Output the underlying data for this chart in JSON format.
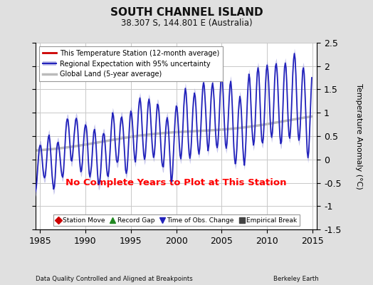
{
  "title": "SOUTH CHANNEL ISLAND",
  "subtitle": "38.307 S, 144.801 E (Australia)",
  "ylabel": "Temperature Anomaly (°C)",
  "xlabel_left": "Data Quality Controlled and Aligned at Breakpoints",
  "xlabel_right": "Berkeley Earth",
  "ylim": [
    -1.5,
    2.5
  ],
  "xlim": [
    1984.5,
    2015.5
  ],
  "xticks": [
    1985,
    1990,
    1995,
    2000,
    2005,
    2010,
    2015
  ],
  "yticks_left": [
    -1.5,
    -1.0,
    -0.5,
    0.0,
    0.5,
    1.0,
    1.5,
    2.0,
    2.5
  ],
  "yticks_right": [
    -1.5,
    -1.0,
    -0.5,
    0.0,
    0.5,
    1.0,
    1.5,
    2.0,
    2.5
  ],
  "ytick_labels_right": [
    "-1.5",
    "-1",
    "-0.5",
    "0",
    "0.5",
    "1",
    "1.5",
    "2",
    "2.5"
  ],
  "background_color": "#e0e0e0",
  "plot_bg_color": "#ffffff",
  "grid_color": "#c8c8c8",
  "no_data_text": "No Complete Years to Plot at This Station",
  "no_data_color": "#ff0000",
  "regional_color": "#2222bb",
  "regional_fill_color": "#9999dd",
  "global_land_color": "#bbbbbb",
  "station_color": "#cc0000",
  "legend1_items": [
    {
      "label": "This Temperature Station (12-month average)",
      "color": "#cc0000"
    },
    {
      "label": "Regional Expectation with 95% uncertainty",
      "color": "#2222bb"
    },
    {
      "label": "Global Land (5-year average)",
      "color": "#bbbbbb"
    }
  ],
  "legend2_items": [
    {
      "label": "Station Move",
      "color": "#cc0000",
      "marker": "D"
    },
    {
      "label": "Record Gap",
      "color": "#228822",
      "marker": "^"
    },
    {
      "label": "Time of Obs. Change",
      "color": "#2222bb",
      "marker": "v"
    },
    {
      "label": "Empirical Break",
      "color": "#444444",
      "marker": "s"
    }
  ]
}
